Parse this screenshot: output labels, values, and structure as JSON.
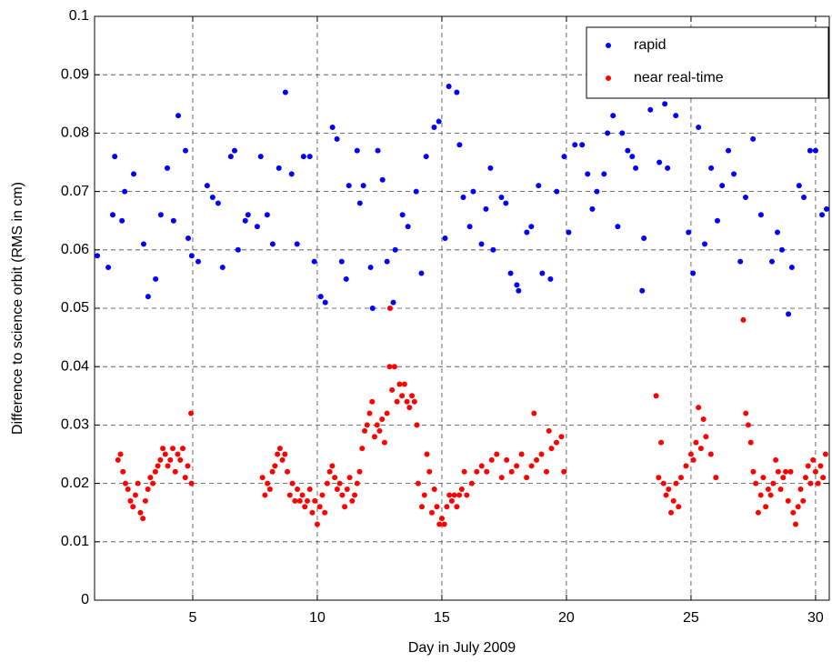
{
  "chart_data": {
    "type": "scatter",
    "x_label": "Day in July 2009",
    "y_label": "Difference to science orbit (RMS in cm)",
    "xlim": [
      1.06,
      30.55
    ],
    "xticks": [
      5,
      10,
      15,
      20,
      25,
      30
    ],
    "ylim": [
      0,
      0.1
    ],
    "yticks": [
      0,
      0.01,
      0.02,
      0.03,
      0.04,
      0.05,
      0.06,
      0.07,
      0.08,
      0.09,
      0.1
    ],
    "grid": true,
    "legend": "upper right",
    "series": [
      {
        "name": "rapid",
        "color": "#0000ff",
        "x": [
          1.17,
          1.61,
          1.79,
          1.87,
          2.16,
          2.27,
          2.63,
          3.03,
          3.21,
          3.51,
          3.72,
          3.98,
          4.23,
          4.42,
          4.71,
          4.82,
          4.96,
          5.22,
          5.58,
          5.8,
          6.02,
          6.2,
          6.53,
          6.68,
          6.82,
          7.11,
          7.22,
          7.59,
          7.73,
          7.99,
          8.21,
          8.46,
          8.72,
          8.97,
          9.19,
          9.45,
          9.7,
          9.88,
          10.14,
          10.32,
          10.61,
          10.79,
          10.98,
          11.16,
          11.27,
          11.6,
          11.71,
          11.85,
          12.14,
          12.22,
          12.43,
          12.62,
          12.8,
          13.05,
          13.13,
          13.42,
          13.64,
          13.97,
          14.18,
          14.37,
          14.69,
          14.88,
          15.13,
          15.28,
          15.6,
          15.71,
          15.86,
          16.12,
          16.26,
          16.59,
          16.77,
          16.95,
          17.06,
          17.39,
          17.57,
          17.76,
          18.01,
          18.08,
          18.41,
          18.59,
          18.88,
          19.03,
          19.36,
          19.61,
          19.91,
          20.09,
          20.34,
          20.63,
          20.85,
          21.04,
          21.22,
          21.51,
          21.65,
          21.87,
          22.06,
          22.24,
          22.46,
          22.64,
          22.78,
          23.04,
          23.11,
          23.37,
          23.73,
          23.95,
          24.06,
          24.39,
          24.9,
          25.08,
          25.3,
          25.55,
          25.81,
          26.06,
          26.25,
          26.5,
          26.72,
          26.98,
          27.19,
          27.49,
          27.81,
          28.25,
          28.47,
          28.65,
          28.91,
          29.05,
          29.34,
          29.53,
          29.78,
          30.0,
          30.26,
          30.44
        ],
        "values": [
          0.059,
          0.057,
          0.066,
          0.076,
          0.065,
          0.07,
          0.073,
          0.061,
          0.052,
          0.055,
          0.066,
          0.074,
          0.065,
          0.083,
          0.077,
          0.062,
          0.059,
          0.058,
          0.071,
          0.069,
          0.068,
          0.057,
          0.076,
          0.077,
          0.06,
          0.065,
          0.066,
          0.064,
          0.076,
          0.066,
          0.061,
          0.074,
          0.087,
          0.073,
          0.061,
          0.076,
          0.076,
          0.058,
          0.052,
          0.051,
          0.081,
          0.079,
          0.058,
          0.055,
          0.071,
          0.077,
          0.068,
          0.071,
          0.057,
          0.05,
          0.077,
          0.072,
          0.058,
          0.051,
          0.06,
          0.066,
          0.064,
          0.07,
          0.056,
          0.076,
          0.081,
          0.082,
          0.062,
          0.088,
          0.087,
          0.078,
          0.069,
          0.064,
          0.07,
          0.061,
          0.067,
          0.074,
          0.06,
          0.069,
          0.068,
          0.056,
          0.054,
          0.053,
          0.063,
          0.064,
          0.071,
          0.056,
          0.055,
          0.07,
          0.076,
          0.063,
          0.078,
          0.078,
          0.073,
          0.067,
          0.07,
          0.073,
          0.08,
          0.083,
          0.064,
          0.08,
          0.077,
          0.076,
          0.074,
          0.053,
          0.062,
          0.084,
          0.075,
          0.085,
          0.074,
          0.083,
          0.063,
          0.056,
          0.081,
          0.061,
          0.074,
          0.065,
          0.071,
          0.077,
          0.073,
          0.058,
          0.069,
          0.079,
          0.066,
          0.058,
          0.063,
          0.06,
          0.049,
          0.057,
          0.071,
          0.069,
          0.077,
          0.077,
          0.066,
          0.067
        ]
      },
      {
        "name": "near real-time",
        "color": "#ff0000",
        "x": [
          2.0,
          2.1,
          2.2,
          2.3,
          2.4,
          2.5,
          2.6,
          2.7,
          2.8,
          2.9,
          3.0,
          3.1,
          3.2,
          3.3,
          3.4,
          3.5,
          3.6,
          3.7,
          3.8,
          3.9,
          4.0,
          4.1,
          4.2,
          4.3,
          4.4,
          4.5,
          4.6,
          4.7,
          4.8,
          4.93,
          4.95,
          7.8,
          7.9,
          8.0,
          8.1,
          8.2,
          8.3,
          8.4,
          8.5,
          8.6,
          8.7,
          8.8,
          8.9,
          9.0,
          9.1,
          9.2,
          9.3,
          9.4,
          9.5,
          9.6,
          9.7,
          9.8,
          9.9,
          10.0,
          10.1,
          10.2,
          10.3,
          10.4,
          10.5,
          10.6,
          10.7,
          10.8,
          10.9,
          11.0,
          11.1,
          11.2,
          11.3,
          11.4,
          11.5,
          11.6,
          11.7,
          11.8,
          11.9,
          12.0,
          12.1,
          12.2,
          12.3,
          12.4,
          12.5,
          12.6,
          12.7,
          12.8,
          12.9,
          12.92,
          13.0,
          13.1,
          13.2,
          13.3,
          13.4,
          13.5,
          13.6,
          13.7,
          13.8,
          13.9,
          14.0,
          14.05,
          14.2,
          14.3,
          14.4,
          14.5,
          14.6,
          14.7,
          14.8,
          14.9,
          15.0,
          15.1,
          15.2,
          15.3,
          15.4,
          15.5,
          15.6,
          15.7,
          15.8,
          15.9,
          16.0,
          16.2,
          16.4,
          16.6,
          16.8,
          17.0,
          17.2,
          17.4,
          17.6,
          17.8,
          18.0,
          18.2,
          18.4,
          18.6,
          18.7,
          18.8,
          19.0,
          19.2,
          19.3,
          19.4,
          19.6,
          19.8,
          19.9,
          23.6,
          23.7,
          23.8,
          23.9,
          24.0,
          24.1,
          24.2,
          24.3,
          24.4,
          24.5,
          24.6,
          24.8,
          25.0,
          25.1,
          25.2,
          25.3,
          25.4,
          25.5,
          25.6,
          25.8,
          26.0,
          27.1,
          27.2,
          27.3,
          27.4,
          27.5,
          27.6,
          27.7,
          27.8,
          27.9,
          28.0,
          28.1,
          28.2,
          28.3,
          28.4,
          28.5,
          28.6,
          28.7,
          28.8,
          28.9,
          29.0,
          29.1,
          29.2,
          29.3,
          29.4,
          29.5,
          29.6,
          29.7,
          29.8,
          29.9,
          30.0,
          30.1,
          30.2,
          30.3,
          30.4
        ],
        "values": [
          0.024,
          0.025,
          0.022,
          0.02,
          0.019,
          0.017,
          0.016,
          0.018,
          0.02,
          0.015,
          0.014,
          0.017,
          0.019,
          0.021,
          0.02,
          0.022,
          0.023,
          0.024,
          0.026,
          0.025,
          0.023,
          0.024,
          0.026,
          0.022,
          0.025,
          0.024,
          0.026,
          0.021,
          0.023,
          0.032,
          0.02,
          0.021,
          0.018,
          0.02,
          0.019,
          0.022,
          0.023,
          0.025,
          0.026,
          0.024,
          0.025,
          0.022,
          0.018,
          0.02,
          0.017,
          0.019,
          0.017,
          0.018,
          0.016,
          0.017,
          0.019,
          0.015,
          0.017,
          0.013,
          0.016,
          0.018,
          0.015,
          0.02,
          0.022,
          0.023,
          0.021,
          0.019,
          0.02,
          0.018,
          0.016,
          0.019,
          0.021,
          0.017,
          0.018,
          0.02,
          0.022,
          0.026,
          0.029,
          0.03,
          0.032,
          0.034,
          0.028,
          0.03,
          0.029,
          0.031,
          0.027,
          0.032,
          0.04,
          0.05,
          0.036,
          0.04,
          0.034,
          0.037,
          0.035,
          0.037,
          0.034,
          0.033,
          0.035,
          0.034,
          0.03,
          0.02,
          0.016,
          0.018,
          0.025,
          0.022,
          0.015,
          0.019,
          0.016,
          0.013,
          0.014,
          0.013,
          0.016,
          0.018,
          0.017,
          0.018,
          0.016,
          0.018,
          0.019,
          0.022,
          0.018,
          0.02,
          0.022,
          0.023,
          0.022,
          0.024,
          0.025,
          0.021,
          0.024,
          0.022,
          0.023,
          0.025,
          0.021,
          0.023,
          0.032,
          0.024,
          0.025,
          0.022,
          0.029,
          0.026,
          0.027,
          0.028,
          0.022,
          0.035,
          0.021,
          0.027,
          0.02,
          0.018,
          0.019,
          0.015,
          0.017,
          0.02,
          0.016,
          0.021,
          0.023,
          0.025,
          0.024,
          0.027,
          0.033,
          0.026,
          0.031,
          0.028,
          0.025,
          0.021,
          0.048,
          0.032,
          0.03,
          0.027,
          0.022,
          0.02,
          0.015,
          0.018,
          0.021,
          0.016,
          0.019,
          0.018,
          0.02,
          0.024,
          0.022,
          0.019,
          0.021,
          0.022,
          0.017,
          0.022,
          0.015,
          0.013,
          0.016,
          0.019,
          0.017,
          0.021,
          0.023,
          0.02,
          0.024,
          0.022,
          0.02,
          0.023,
          0.021,
          0.025
        ]
      }
    ]
  }
}
